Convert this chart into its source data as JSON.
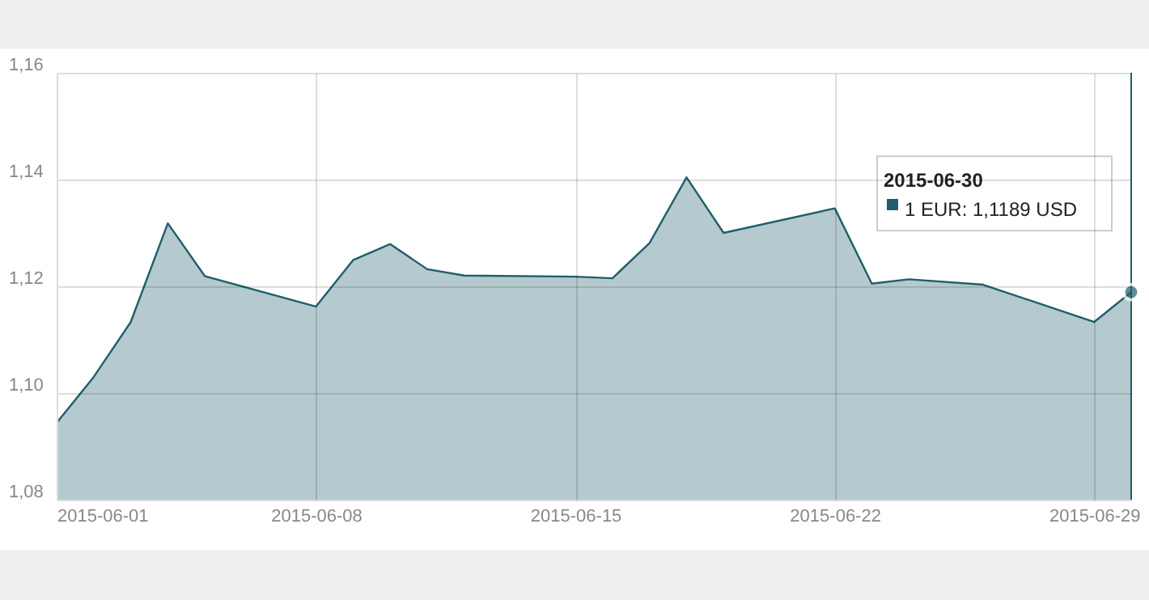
{
  "chart_data": {
    "type": "area",
    "x": [
      "2015-06-01",
      "2015-06-02",
      "2015-06-03",
      "2015-06-04",
      "2015-06-05",
      "2015-06-08",
      "2015-06-09",
      "2015-06-10",
      "2015-06-11",
      "2015-06-12",
      "2015-06-15",
      "2015-06-16",
      "2015-06-17",
      "2015-06-18",
      "2015-06-19",
      "2015-06-22",
      "2015-06-23",
      "2015-06-24",
      "2015-06-26",
      "2015-06-29",
      "2015-06-30"
    ],
    "series": [
      {
        "color": "#1e5f6b",
        "values": [
          1.0944,
          1.103,
          1.1133,
          1.1318,
          1.1219,
          1.1162,
          1.1249,
          1.1279,
          1.1232,
          1.122,
          1.1218,
          1.1215,
          1.1281,
          1.1404,
          1.13,
          1.1346,
          1.1205,
          1.1213,
          1.1203,
          1.1133,
          1.1189
        ]
      }
    ],
    "xlim": [
      "2015-06-01",
      "2015-06-30"
    ],
    "xticks": [
      "2015-06-01",
      "2015-06-08",
      "2015-06-15",
      "2015-06-22",
      "2015-06-29"
    ],
    "ylim": [
      1.08,
      1.16
    ],
    "yticks": [
      {
        "value": 1.08,
        "label": "1,08"
      },
      {
        "value": 1.1,
        "label": "1,10"
      },
      {
        "value": 1.12,
        "label": "1,12"
      },
      {
        "value": 1.14,
        "label": "1,14"
      },
      {
        "value": 1.16,
        "label": "1,16"
      }
    ],
    "grid": true,
    "annotations": [
      "2015-06-30",
      "1 EUR: 1,1189 USD"
    ]
  }
}
